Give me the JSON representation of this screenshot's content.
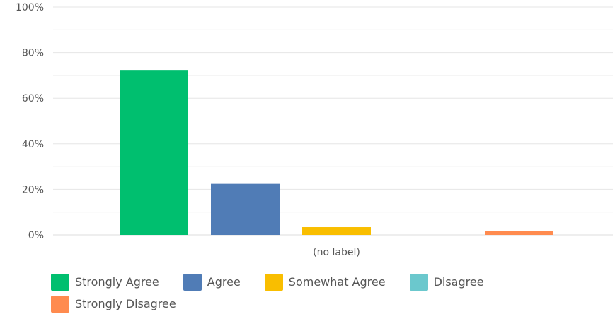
{
  "chart_data": {
    "type": "bar",
    "categories": [
      "(no label)"
    ],
    "series": [
      {
        "name": "Strongly Agree",
        "color": "#00bf6f",
        "values": [
          72.4
        ]
      },
      {
        "name": "Agree",
        "color": "#507cb6",
        "values": [
          22.4
        ]
      },
      {
        "name": "Somewhat Agree",
        "color": "#f9be00",
        "values": [
          3.4
        ]
      },
      {
        "name": "Disagree",
        "color": "#6bc8cd",
        "values": [
          0
        ]
      },
      {
        "name": "Strongly Disagree",
        "color": "#ff8b4f",
        "values": [
          1.7
        ]
      }
    ],
    "yticks": [
      "0%",
      "20%",
      "40%",
      "60%",
      "80%",
      "100%"
    ],
    "ylim": [
      0,
      100
    ],
    "grid": true,
    "legend_position": "bottom",
    "title": "",
    "xlabel": "",
    "ylabel": ""
  }
}
